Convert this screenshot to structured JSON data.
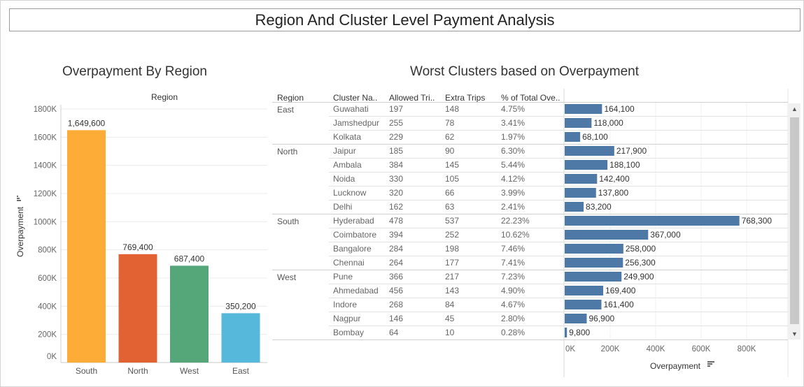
{
  "dashboard_title": "Region And Cluster Level Payment Analysis",
  "colors": {
    "South": "#FDAC37",
    "North": "#E36234",
    "West": "#55A77A",
    "East": "#56B8DB",
    "bar": "#4E79A7"
  },
  "icons": [
    "sort-icon",
    "scroll-up-icon",
    "scroll-down-icon"
  ],
  "chart_data": [
    {
      "type": "bar",
      "title": "Overpayment By Region",
      "header": "Region",
      "ylabel": "Overpayment",
      "categories": [
        "South",
        "North",
        "West",
        "East"
      ],
      "values": [
        1649600,
        769400,
        687400,
        350200
      ],
      "value_labels": [
        "1,649,600",
        "769,400",
        "687,400",
        "350,200"
      ],
      "ylim": [
        0,
        1800000
      ],
      "yticks": [
        0,
        200000,
        400000,
        600000,
        800000,
        1000000,
        1200000,
        1400000,
        1600000,
        1800000
      ],
      "ytick_labels": [
        "0K",
        "200K",
        "400K",
        "600K",
        "800K",
        "1000K",
        "1200K",
        "1400K",
        "1600K",
        "1800K"
      ],
      "grid": true
    },
    {
      "type": "table",
      "title": "Worst Clusters based on Overpayment",
      "columns": [
        "Region",
        "Cluster Na..",
        "Allowed Tri..",
        "Extra Trips",
        "% of Total Ove.."
      ],
      "xlabel": "Overpayment",
      "xlim": [
        0,
        900000
      ],
      "xticks": [
        0,
        200000,
        400000,
        600000,
        800000
      ],
      "xtick_labels": [
        "0K",
        "200K",
        "400K",
        "600K",
        "800K"
      ],
      "groups": [
        {
          "region": "East",
          "rows": [
            {
              "cluster": "Guwahati",
              "allowed": "197",
              "extra": "148",
              "pct": "4.75%",
              "value": 164100,
              "label": "164,100"
            },
            {
              "cluster": "Jamshedpur",
              "allowed": "255",
              "extra": "78",
              "pct": "3.41%",
              "value": 118000,
              "label": "118,000"
            },
            {
              "cluster": "Kolkata",
              "allowed": "229",
              "extra": "62",
              "pct": "1.97%",
              "value": 68100,
              "label": "68,100"
            }
          ]
        },
        {
          "region": "North",
          "rows": [
            {
              "cluster": "Jaipur",
              "allowed": "185",
              "extra": "90",
              "pct": "6.30%",
              "value": 217900,
              "label": "217,900"
            },
            {
              "cluster": "Ambala",
              "allowed": "384",
              "extra": "145",
              "pct": "5.44%",
              "value": 188100,
              "label": "188,100"
            },
            {
              "cluster": "Noida",
              "allowed": "330",
              "extra": "105",
              "pct": "4.12%",
              "value": 142400,
              "label": "142,400"
            },
            {
              "cluster": "Lucknow",
              "allowed": "320",
              "extra": "66",
              "pct": "3.99%",
              "value": 137800,
              "label": "137,800"
            },
            {
              "cluster": "Delhi",
              "allowed": "162",
              "extra": "63",
              "pct": "2.41%",
              "value": 83200,
              "label": "83,200"
            }
          ]
        },
        {
          "region": "South",
          "rows": [
            {
              "cluster": "Hyderabad",
              "allowed": "478",
              "extra": "537",
              "pct": "22.23%",
              "value": 768300,
              "label": "768,300"
            },
            {
              "cluster": "Coimbatore",
              "allowed": "394",
              "extra": "252",
              "pct": "10.62%",
              "value": 367000,
              "label": "367,000"
            },
            {
              "cluster": "Bangalore",
              "allowed": "284",
              "extra": "198",
              "pct": "7.46%",
              "value": 258000,
              "label": "258,000"
            },
            {
              "cluster": "Chennai",
              "allowed": "264",
              "extra": "177",
              "pct": "7.41%",
              "value": 256300,
              "label": "256,300"
            }
          ]
        },
        {
          "region": "West",
          "rows": [
            {
              "cluster": "Pune",
              "allowed": "366",
              "extra": "217",
              "pct": "7.23%",
              "value": 249900,
              "label": "249,900"
            },
            {
              "cluster": "Ahmedabad",
              "allowed": "456",
              "extra": "143",
              "pct": "4.90%",
              "value": 169400,
              "label": "169,400"
            },
            {
              "cluster": "Indore",
              "allowed": "268",
              "extra": "84",
              "pct": "4.67%",
              "value": 161400,
              "label": "161,400"
            },
            {
              "cluster": "Nagpur",
              "allowed": "146",
              "extra": "45",
              "pct": "2.80%",
              "value": 96900,
              "label": "96,900"
            },
            {
              "cluster": "Bombay",
              "allowed": "64",
              "extra": "10",
              "pct": "0.28%",
              "value": 9800,
              "label": "9,800"
            }
          ]
        }
      ]
    }
  ]
}
